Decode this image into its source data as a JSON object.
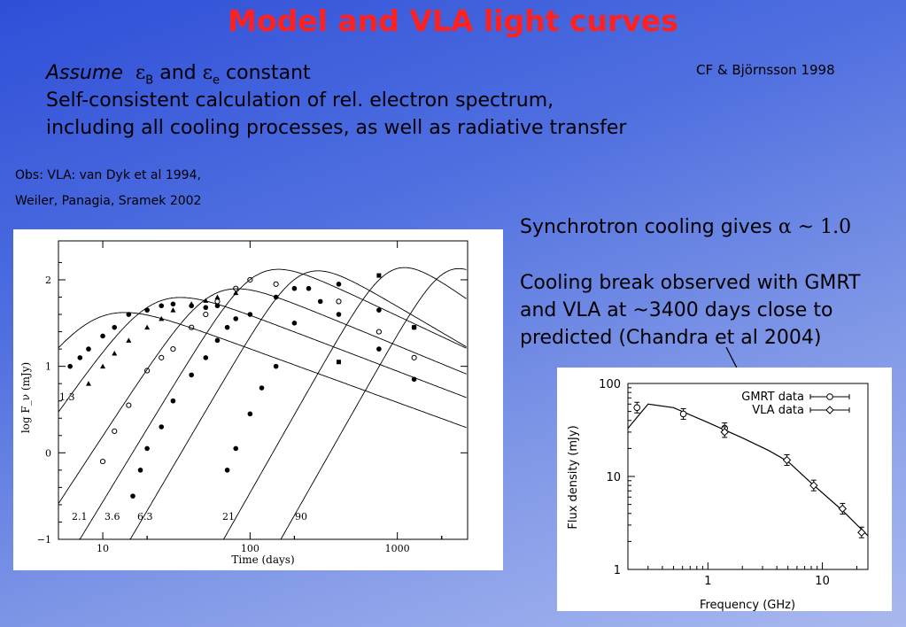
{
  "slide": {
    "title": "Model and VLA light curves",
    "citation": "CF & Björnsson 1998",
    "assume_word": "Assume",
    "eps_symbol": "ε",
    "sub_b": "B",
    "and_text": "and",
    "sub_e": "e",
    "constant_text": "constant",
    "line2": "Self-consistent calculation of rel. electron spectrum,",
    "line3": "including all cooling processes, as well as radiative transfer",
    "obs_line1": "Obs: VLA: van Dyk et al 1994,",
    "obs_line2": "Weiler, Panagia, Sramek 2002",
    "sync_prefix": "Synchrotron cooling gives",
    "alpha_symbol": "α",
    "sim_symbol": "~",
    "alpha_value": "1.0",
    "cooling1": "Cooling break observed with GMRT",
    "cooling2": "and VLA at ~3400 days  close to",
    "cooling3": "predicted (Chandra et al 2004)",
    "colors": {
      "background": "#4f6fe0",
      "title": "#ff2020",
      "text": "#000000"
    }
  },
  "chart_data": [
    {
      "type": "scatter",
      "xlabel": "Time (days)",
      "ylabel": "log F_ν (mJy)",
      "x_scale": "log",
      "xlim": [
        5,
        3000
      ],
      "ylim": [
        -1,
        2.45
      ],
      "x_ticks": [
        "10",
        "100",
        "1000"
      ],
      "y_ticks": [
        "−1",
        "0",
        "1",
        "2"
      ],
      "curve_labels": [
        "1.3",
        "2.1",
        "3.6",
        "6.3",
        "21",
        "90"
      ],
      "series": [
        {
          "name": "1.3",
          "x": [
            6,
            7,
            8,
            10,
            12,
            15,
            20,
            25,
            30,
            40,
            50,
            60
          ],
          "y": [
            1.0,
            1.1,
            1.2,
            1.35,
            1.45,
            1.6,
            1.65,
            1.7,
            1.72,
            1.7,
            1.68,
            1.7
          ]
        },
        {
          "name": "2.1",
          "x": [
            8,
            10,
            12,
            15,
            20,
            25,
            30,
            40,
            50,
            60,
            80
          ],
          "y": [
            0.8,
            1.0,
            1.15,
            1.3,
            1.45,
            1.55,
            1.65,
            1.72,
            1.76,
            1.8,
            1.85
          ]
        },
        {
          "name": "3.6",
          "x": [
            10,
            12,
            15,
            20,
            25,
            30,
            40,
            50,
            60,
            80,
            100,
            150,
            400,
            750,
            1300
          ],
          "y": [
            -0.1,
            0.25,
            0.55,
            0.95,
            1.1,
            1.2,
            1.45,
            1.6,
            1.75,
            1.9,
            2.0,
            1.95,
            1.75,
            1.4,
            1.1
          ]
        },
        {
          "name": "6.3",
          "x": [
            16,
            18,
            20,
            25,
            30,
            40,
            50,
            60,
            70,
            80,
            100,
            150,
            200,
            300,
            400,
            750,
            1300
          ],
          "y": [
            -0.5,
            -0.2,
            0.05,
            0.3,
            0.6,
            0.9,
            1.1,
            1.3,
            1.45,
            1.55,
            1.6,
            1.8,
            1.9,
            1.75,
            1.6,
            1.2,
            0.85
          ]
        },
        {
          "name": "21",
          "x": [
            70,
            80,
            100,
            120,
            150,
            200,
            250,
            400,
            750,
            1300
          ],
          "y": [
            -0.2,
            0.05,
            0.45,
            0.75,
            1.0,
            1.5,
            1.9,
            1.95,
            1.65,
            1.45
          ]
        },
        {
          "name": "90",
          "x": [
            400,
            750,
            1300
          ],
          "y": [
            1.05,
            2.05,
            1.45
          ]
        }
      ]
    },
    {
      "type": "line",
      "xlabel": "Frequency (GHz)",
      "ylabel": "Flux density (mJy)",
      "x_scale": "log",
      "y_scale": "log",
      "xlim": [
        0.2,
        25
      ],
      "ylim": [
        1,
        100
      ],
      "x_ticks": [
        "1",
        "10"
      ],
      "y_ticks": [
        "1",
        "10",
        "100"
      ],
      "legend_position": "top-right",
      "series": [
        {
          "name": "GMRT data",
          "marker": "circle",
          "x": [
            0.24,
            0.61,
            1.4
          ],
          "y": [
            55,
            47,
            33
          ]
        },
        {
          "name": "VLA data",
          "marker": "diamond",
          "x": [
            1.4,
            4.9,
            8.4,
            15,
            22
          ],
          "y": [
            30,
            15,
            8,
            4.5,
            2.5
          ]
        }
      ],
      "model": {
        "x": [
          0.2,
          0.3,
          0.5,
          1,
          2,
          3.4,
          5,
          8,
          15,
          25
        ],
        "y": [
          33,
          60,
          55,
          38,
          26,
          19,
          14.5,
          8.5,
          4.3,
          2.3
        ]
      }
    }
  ]
}
